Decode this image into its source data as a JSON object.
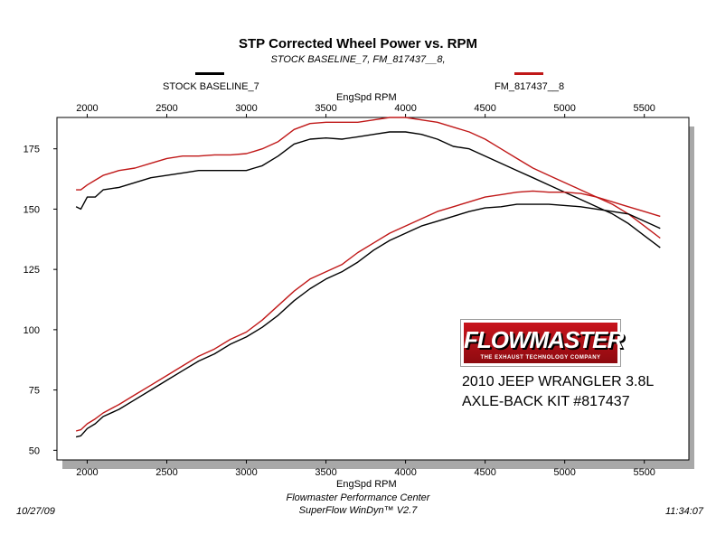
{
  "chart_data": {
    "type": "line",
    "title": "STP Corrected Wheel Power vs. RPM",
    "subtitle": "STOCK BASELINE_7, FM_817437__8,",
    "xlabel": "EngSpd  RPM",
    "ylabel": "",
    "xlim": [
      1810,
      5780
    ],
    "ylim": [
      46,
      188
    ],
    "x_ticks": [
      2000,
      2500,
      3000,
      3500,
      4000,
      4500,
      5000,
      5500
    ],
    "x_tick_labels": [
      "2000",
      "2500",
      "3000",
      "3500",
      "4000",
      "4500",
      "5000",
      "5500"
    ],
    "y_ticks": [
      50,
      75,
      100,
      125,
      150,
      175
    ],
    "y_tick_labels": [
      "50",
      "75",
      "100",
      "125",
      "150",
      "175"
    ],
    "grid": false,
    "legend": [
      {
        "name": "STOCK BASELINE_7",
        "color": "#000000"
      },
      {
        "name": "FM_817437__8",
        "color": "#c01818"
      }
    ],
    "series": [
      {
        "name": "STOCK BASELINE_7 Torque",
        "color": "#000000",
        "x": [
          1930,
          1960,
          2000,
          2050,
          2100,
          2200,
          2300,
          2400,
          2500,
          2600,
          2700,
          2800,
          2900,
          3000,
          3050,
          3100,
          3200,
          3300,
          3400,
          3500,
          3600,
          3700,
          3800,
          3900,
          4000,
          4100,
          4200,
          4300,
          4400,
          4500,
          4600,
          4700,
          4800,
          4900,
          5000,
          5100,
          5200,
          5300,
          5400,
          5500,
          5600
        ],
        "y": [
          151,
          150,
          155,
          155,
          158,
          159,
          161,
          163,
          164,
          165,
          166,
          166,
          166,
          166,
          167,
          168,
          172,
          177,
          179,
          179.5,
          179,
          180,
          181,
          182,
          182,
          181,
          179,
          176,
          175,
          172,
          169,
          166,
          163,
          160,
          157,
          154,
          151,
          148,
          144,
          139,
          134
        ]
      },
      {
        "name": "FM_817437__8 Torque",
        "color": "#c01818",
        "x": [
          1930,
          1960,
          2000,
          2050,
          2100,
          2200,
          2300,
          2400,
          2500,
          2600,
          2700,
          2800,
          2900,
          3000,
          3050,
          3100,
          3200,
          3300,
          3400,
          3500,
          3600,
          3700,
          3800,
          3900,
          4000,
          4100,
          4200,
          4300,
          4400,
          4500,
          4600,
          4700,
          4800,
          4900,
          5000,
          5100,
          5200,
          5300,
          5400,
          5500,
          5600
        ],
        "y": [
          158,
          158,
          160,
          162,
          164,
          166,
          167,
          169,
          171,
          172,
          172,
          172.5,
          172.5,
          173,
          174,
          175,
          178,
          183,
          185.5,
          186,
          186,
          186,
          187,
          188,
          188,
          187,
          186,
          184,
          182,
          179,
          175,
          171,
          167,
          164,
          161,
          158,
          155,
          152,
          148,
          143,
          138
        ]
      },
      {
        "name": "STOCK BASELINE_7 Power",
        "color": "#000000",
        "x": [
          1930,
          1960,
          2000,
          2050,
          2100,
          2200,
          2300,
          2400,
          2500,
          2600,
          2700,
          2800,
          2900,
          3000,
          3100,
          3200,
          3300,
          3400,
          3500,
          3600,
          3700,
          3800,
          3900,
          4000,
          4100,
          4200,
          4300,
          4400,
          4500,
          4600,
          4700,
          4800,
          4900,
          5000,
          5100,
          5200,
          5300,
          5400,
          5500,
          5600
        ],
        "y": [
          55.5,
          56,
          59,
          61,
          64,
          67,
          71,
          75,
          79,
          83,
          87,
          90,
          94,
          97,
          101,
          106,
          112,
          117,
          121,
          124,
          128,
          133,
          137,
          140,
          143,
          145,
          147,
          149,
          150.5,
          151,
          152,
          152,
          152,
          151.5,
          151,
          150,
          149,
          148,
          145,
          142
        ]
      },
      {
        "name": "FM_817437__8 Power",
        "color": "#c01818",
        "x": [
          1930,
          1960,
          2000,
          2050,
          2100,
          2200,
          2300,
          2400,
          2500,
          2600,
          2700,
          2800,
          2900,
          3000,
          3100,
          3200,
          3300,
          3400,
          3500,
          3600,
          3700,
          3800,
          3900,
          4000,
          4100,
          4200,
          4300,
          4400,
          4500,
          4600,
          4700,
          4800,
          4900,
          5000,
          5100,
          5200,
          5300,
          5400,
          5500,
          5600
        ],
        "y": [
          58,
          58.5,
          61,
          63,
          65.5,
          69,
          73,
          77,
          81,
          85,
          89,
          92,
          96,
          99,
          104,
          110,
          116,
          121,
          124,
          127,
          132,
          136,
          140,
          143,
          146,
          149,
          151,
          153,
          155,
          156,
          157,
          157.5,
          157,
          157,
          156.5,
          155,
          153,
          151,
          149,
          147
        ]
      }
    ]
  },
  "logo": {
    "brand": "FLOWMASTER",
    "tagline": "THE EXHAUST TECHNOLOGY COMPANY"
  },
  "caption": {
    "line1": "2010 JEEP WRANGLER 3.8L",
    "line2": "AXLE-BACK KIT #817437"
  },
  "footer": {
    "date": "10/27/09",
    "center_line1": "Flowmaster Performance Center",
    "center_line2": "SuperFlow WinDyn™ V2.7",
    "time": "11:34:07"
  }
}
